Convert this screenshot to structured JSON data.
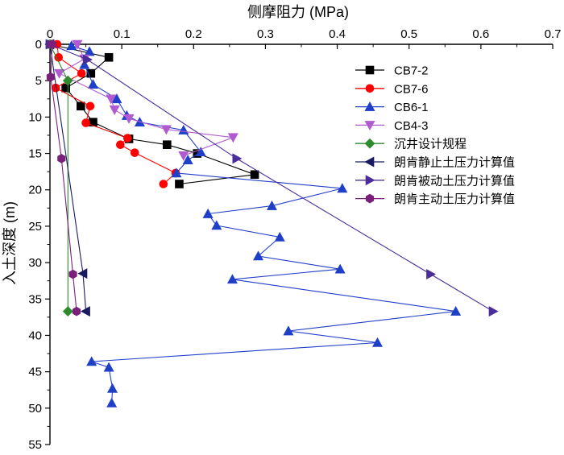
{
  "chart_data": {
    "type": "line",
    "orientation": "depth-profile",
    "xlabel": "侧摩阻力 (MPa)",
    "ylabel": "入土深度 (m)",
    "x_axis_position": "top",
    "xlim": [
      0,
      0.7
    ],
    "ylim": [
      0,
      55
    ],
    "y_inverted": true,
    "x_ticks": [
      0,
      0.1,
      0.2,
      0.3,
      0.4,
      0.5,
      0.6,
      0.7
    ],
    "x_tick_labels": [
      "0",
      "0.1",
      "0.2",
      "0.3",
      "0.4",
      "0.5",
      "0.6",
      "0.7"
    ],
    "y_ticks": [
      0,
      5,
      10,
      15,
      20,
      25,
      30,
      35,
      40,
      45,
      50,
      55
    ],
    "y_tick_labels": [
      "0",
      "5",
      "10",
      "15",
      "20",
      "25",
      "30",
      "35",
      "40",
      "45",
      "50",
      "55"
    ],
    "legend_position": "right",
    "series": [
      {
        "name": "CB7-2",
        "color": "#000000",
        "marker": "square",
        "points": [
          [
            0,
            0
          ],
          [
            0.082,
            1.8
          ],
          [
            0.057,
            4.0
          ],
          [
            0.022,
            6.0
          ],
          [
            0.043,
            8.5
          ],
          [
            0.06,
            10.7
          ],
          [
            0.11,
            13.0
          ],
          [
            0.163,
            13.8
          ],
          [
            0.205,
            15.0
          ],
          [
            0.285,
            17.9
          ],
          [
            0.18,
            19.2
          ]
        ]
      },
      {
        "name": "CB7-6",
        "color": "#ff0000",
        "marker": "circle",
        "points": [
          [
            0.01,
            0
          ],
          [
            0.012,
            1.8
          ],
          [
            0.044,
            4.0
          ],
          [
            0.008,
            6.0
          ],
          [
            0.056,
            8.5
          ],
          [
            0.05,
            10.8
          ],
          [
            0.108,
            12.9
          ],
          [
            0.098,
            13.8
          ],
          [
            0.118,
            14.9
          ],
          [
            0.175,
            17.7
          ],
          [
            0.158,
            19.2
          ]
        ]
      },
      {
        "name": "CB6-1",
        "color": "#1f3fc8",
        "marker": "triangle-up",
        "points": [
          [
            0.03,
            0.2
          ],
          [
            0.055,
            1.0
          ],
          [
            0.048,
            2.8
          ],
          [
            0.06,
            5.5
          ],
          [
            0.093,
            7.5
          ],
          [
            0.107,
            9.8
          ],
          [
            0.125,
            10.7
          ],
          [
            0.186,
            11.8
          ],
          [
            0.21,
            14.8
          ],
          [
            0.192,
            15.9
          ],
          [
            0.176,
            17.7
          ],
          [
            0.407,
            19.8
          ],
          [
            0.309,
            22.2
          ],
          [
            0.22,
            23.3
          ],
          [
            0.232,
            24.9
          ],
          [
            0.32,
            26.5
          ],
          [
            0.29,
            29.1
          ],
          [
            0.404,
            30.9
          ],
          [
            0.254,
            32.3
          ],
          [
            0.565,
            36.7
          ],
          [
            0.332,
            39.4
          ],
          [
            0.456,
            41.0
          ],
          [
            0.058,
            43.6
          ],
          [
            0.082,
            44.4
          ],
          [
            0.087,
            47.3
          ],
          [
            0.086,
            49.3
          ]
        ]
      },
      {
        "name": "CB4-3",
        "color": "#b05cd0",
        "marker": "triangle-down",
        "points": [
          [
            0.038,
            0
          ],
          [
            0.048,
            2.0
          ],
          [
            0.013,
            4.0
          ],
          [
            0.085,
            7.5
          ],
          [
            0.09,
            9.0
          ],
          [
            0.11,
            10.2
          ],
          [
            0.162,
            11.7
          ],
          [
            0.255,
            12.8
          ],
          [
            0.186,
            15.3
          ]
        ]
      },
      {
        "name": "沉井设计规程",
        "color": "#2d8a2d",
        "marker": "diamond",
        "points": [
          [
            0,
            0
          ],
          [
            0.025,
            5.0
          ],
          [
            0.025,
            36.7
          ]
        ]
      },
      {
        "name": "朗肯静止土压力计算值",
        "color": "#1a1a60",
        "marker": "triangle-left",
        "points": [
          [
            0,
            0
          ],
          [
            0.046,
            31.5
          ],
          [
            0.05,
            36.7
          ]
        ]
      },
      {
        "name": "朗肯被动土压力计算值",
        "color": "#4b2d9a",
        "marker": "triangle-right",
        "points": [
          [
            0,
            0
          ],
          [
            0.052,
            2.1
          ],
          [
            0.26,
            15.7
          ],
          [
            0.53,
            31.6
          ],
          [
            0.617,
            36.7
          ]
        ]
      },
      {
        "name": "朗肯主动土压力计算值",
        "color": "#7a1f7a",
        "marker": "hexagon",
        "points": [
          [
            0.003,
            0
          ],
          [
            0.001,
            4.5
          ],
          [
            0.016,
            15.7
          ],
          [
            0.032,
            31.6
          ],
          [
            0.037,
            36.7
          ]
        ]
      }
    ]
  }
}
